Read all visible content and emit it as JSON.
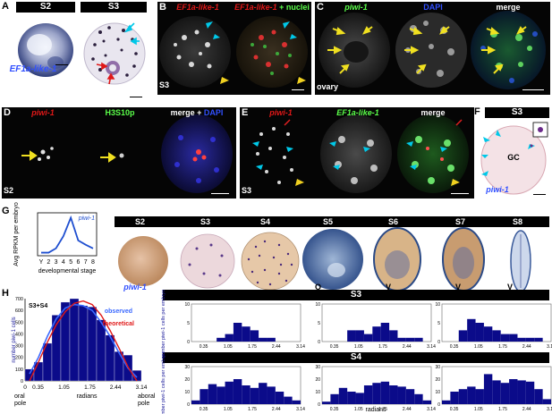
{
  "panels": {
    "A": {
      "label": "A",
      "stages": [
        "S2",
        "S3"
      ],
      "probe": "EF1a-like-1"
    },
    "B": {
      "label": "B",
      "title_red": "EF1a-like-1",
      "title_red2": "EF1a-like-1",
      "title_suffix": "+ nuclei",
      "stage": "S3"
    },
    "C": {
      "label": "C",
      "probe": "piwi-1",
      "stain": "DAPI",
      "merge": "merge",
      "tissue": "ovary"
    },
    "D": {
      "label": "D",
      "probe": "piwi-1",
      "marker": "H3S10p",
      "merge_prefix": "merge +",
      "merge_stain": "DAPI",
      "stage": "S2"
    },
    "E": {
      "label": "E",
      "probe": "piwi-1",
      "probe2": "EF1a-like-1",
      "merge": "merge",
      "stage": "S3"
    },
    "F": {
      "label": "F",
      "stage": "S3",
      "region": "GC",
      "probe": "piwi-1"
    },
    "G": {
      "label": "G",
      "probe": "piwi-1",
      "stages": [
        "S2",
        "S3",
        "S4",
        "S5",
        "S6",
        "S7",
        "S8"
      ],
      "orientation_marks": [
        "O",
        "V",
        "V",
        "V"
      ]
    },
    "H": {
      "label": "H",
      "main_label": "S3+S4",
      "observed": "observed",
      "theoretical": "theoretical",
      "oral_pole": "oral pole",
      "aboral_pole": "aboral pole",
      "radians": "radians",
      "ylabel_small": "number piwi-1 cells per embryo",
      "s3_header": "S3",
      "s4_header": "S4"
    }
  },
  "chart_data": [
    {
      "type": "line",
      "ylabel": "Avg RPKM per embryo",
      "xlabel": "developmental stage",
      "legend": "piwi-1",
      "x": [
        "Y",
        2,
        3,
        4,
        5,
        6,
        7,
        8
      ],
      "series": [
        {
          "name": "piwi-1",
          "values": [
            5,
            5,
            12,
            32,
            62,
            25,
            18,
            12
          ]
        }
      ],
      "ylim": [
        0,
        70
      ],
      "color": "#1f4fd0"
    },
    {
      "type": "bar",
      "title": "S3+S4",
      "xlabel": "radians",
      "ylabel": "number piwi-1 cells",
      "x_ticks": [
        "0",
        "0.35",
        "1.05",
        "1.75",
        "2.44",
        "3.14"
      ],
      "y_ticks": [
        "0",
        "100",
        "200",
        "300",
        "400",
        "500",
        "600",
        "700"
      ],
      "ylim": [
        0,
        700
      ],
      "xlim": [
        0,
        3.14
      ],
      "series": [
        {
          "name": "histogram",
          "values": [
            100,
            160,
            320,
            560,
            670,
            700,
            640,
            630,
            520,
            390,
            250,
            220,
            90
          ]
        },
        {
          "name": "observed",
          "values": [
            60,
            200,
            380,
            530,
            620,
            650,
            640,
            600,
            500,
            380,
            240,
            110,
            30
          ]
        },
        {
          "name": "theoretical",
          "values": [
            0,
            160,
            330,
            480,
            590,
            660,
            680,
            650,
            560,
            430,
            280,
            120,
            0
          ]
        }
      ],
      "legend": [
        "observed",
        "theoretical"
      ]
    },
    {
      "type": "bar",
      "title": "S3",
      "x_ticks": [
        "0.35",
        "1.05",
        "1.75",
        "2.44",
        "3.14"
      ],
      "y_ticks": [
        "0",
        "5",
        "10"
      ],
      "ylim": [
        0,
        10
      ],
      "xlim": [
        0,
        3.14
      ],
      "panels": [
        {
          "values": [
            0,
            0,
            0,
            1,
            2,
            5,
            4,
            3,
            1,
            1,
            0,
            0,
            0
          ]
        },
        {
          "values": [
            0,
            0,
            0,
            3,
            3,
            2,
            4,
            5,
            3,
            1,
            1,
            1,
            0
          ]
        },
        {
          "values": [
            0,
            0,
            3,
            6,
            5,
            4,
            3,
            2,
            2,
            1,
            1,
            1,
            0
          ]
        }
      ]
    },
    {
      "type": "bar",
      "title": "S4",
      "xlabel": "radians",
      "x_ticks": [
        "0.35",
        "1.05",
        "1.75",
        "2.44",
        "3.14"
      ],
      "y_ticks": [
        "0",
        "10",
        "20",
        "30"
      ],
      "ylim": [
        0,
        30
      ],
      "xlim": [
        0,
        3.14
      ],
      "panels": [
        {
          "values": [
            3,
            12,
            16,
            14,
            18,
            20,
            15,
            13,
            17,
            14,
            10,
            6,
            3
          ]
        },
        {
          "values": [
            2,
            8,
            13,
            10,
            9,
            15,
            17,
            18,
            15,
            14,
            12,
            8,
            3
          ]
        },
        {
          "values": [
            3,
            10,
            12,
            14,
            12,
            24,
            19,
            17,
            20,
            19,
            18,
            12,
            4
          ]
        }
      ]
    }
  ]
}
